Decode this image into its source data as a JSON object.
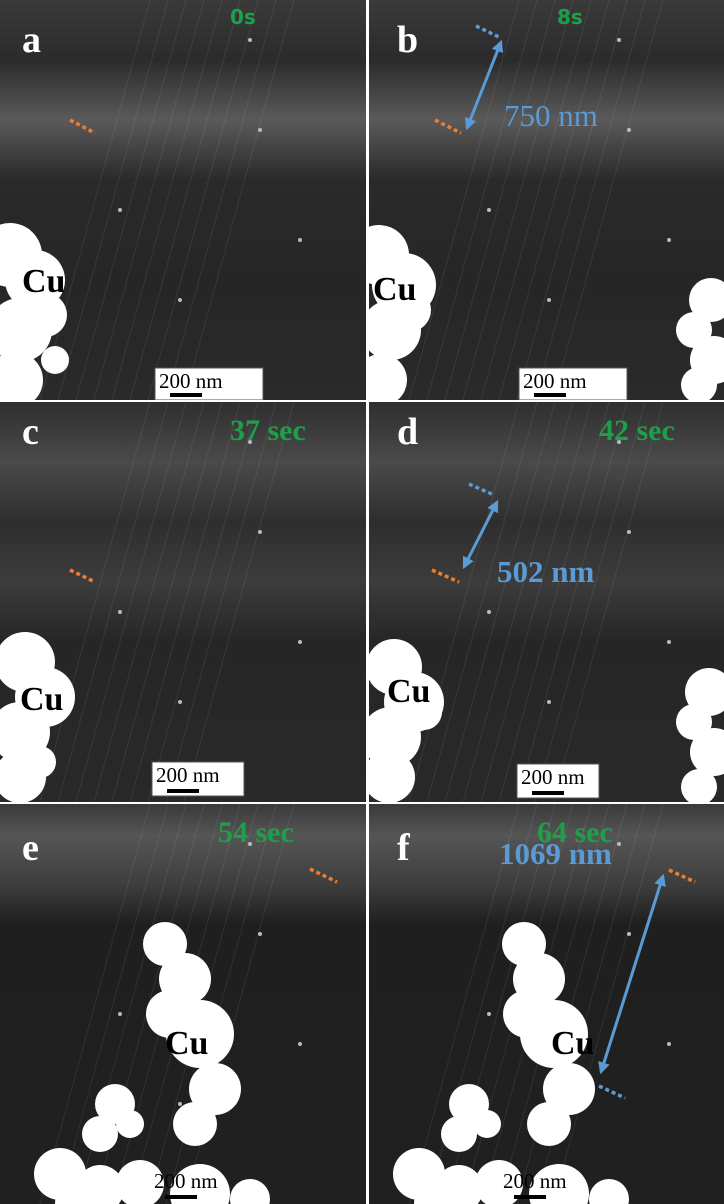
{
  "panels": [
    {
      "letter": "a",
      "time": "0s",
      "cu": "Cu",
      "scale": "200 nm"
    },
    {
      "letter": "b",
      "time": "8s",
      "cu": "Cu",
      "scale": "200 nm",
      "measurement": "750 nm"
    },
    {
      "letter": "c",
      "time": "37 sec",
      "cu": "Cu",
      "scale": "200 nm"
    },
    {
      "letter": "d",
      "time": "42 sec",
      "cu": "Cu",
      "scale": "200 nm",
      "measurement": "502 nm"
    },
    {
      "letter": "e",
      "time": "54 sec",
      "cu": "Cu",
      "scale": "200 nm"
    },
    {
      "letter": "f",
      "time": "64 sec",
      "cu": "Cu",
      "scale": "200 nm",
      "measurement": "1069 nm"
    }
  ]
}
